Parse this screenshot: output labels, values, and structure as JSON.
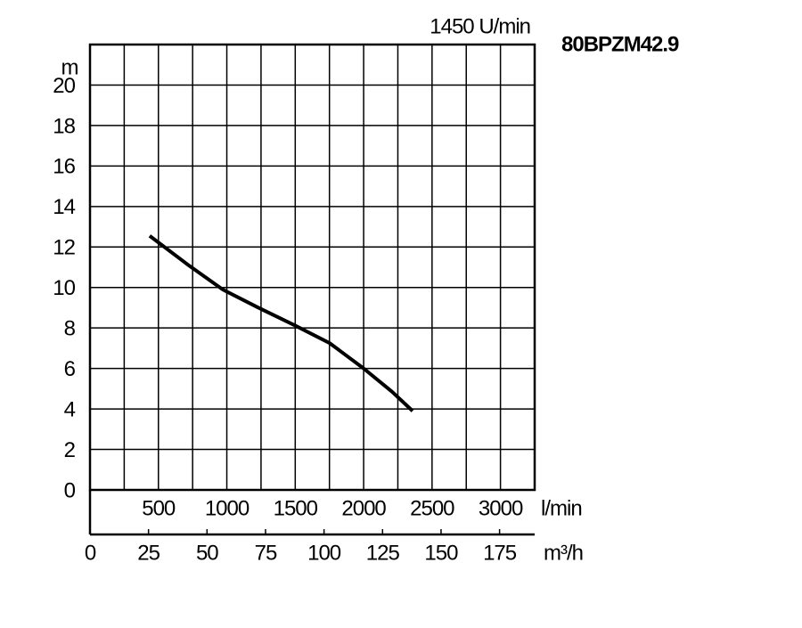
{
  "chart_data": {
    "type": "line",
    "title": "80BPZM42.9",
    "subtitle": "1450 U/min",
    "y_label": "m",
    "x_label": "l/min",
    "x2_label": "m³/h",
    "x": [
      436,
      710,
      970,
      1231,
      1491,
      1752,
      2000,
      2208,
      2358
    ],
    "series": [
      {
        "color": "#000000",
        "values": [
          12.55,
          11.15,
          9.9,
          9.0,
          8.15,
          7.25,
          6.0,
          4.85,
          3.9
        ]
      }
    ],
    "xlim": [
      0,
      3250
    ],
    "xticks": [
      500,
      1000,
      1500,
      2000,
      2500,
      3000
    ],
    "xminorticks": [
      250,
      750,
      1250,
      1750,
      2250,
      2750,
      3250
    ],
    "x2lim": [
      0,
      190
    ],
    "x2ticks": [
      0,
      25,
      50,
      75,
      100,
      125,
      150,
      175
    ],
    "ylim": [
      0,
      22
    ],
    "yticks": [
      0,
      2,
      4,
      6,
      8,
      10,
      12,
      14,
      16,
      18,
      20
    ],
    "grid": true
  }
}
